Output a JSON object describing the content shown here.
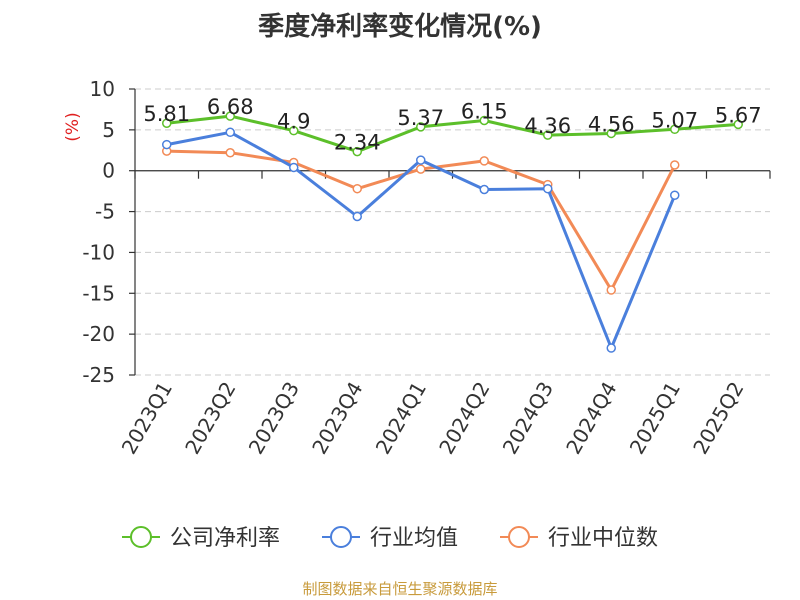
{
  "title": "季度净利率变化情况(%)",
  "source": "制图数据来自恒生聚源数据库",
  "chart_data": {
    "type": "line",
    "title": "季度净利率变化情况(%)",
    "ylabel": "(%)",
    "xlabel": "",
    "ylim": [
      -25,
      10
    ],
    "yticks": [
      10,
      5,
      0,
      -5,
      -10,
      -15,
      -20,
      -25
    ],
    "grid": true,
    "legend_position": "bottom",
    "categories": [
      "2023Q1",
      "2023Q2",
      "2023Q3",
      "2023Q4",
      "2024Q1",
      "2024Q2",
      "2024Q3",
      "2024Q4",
      "2025Q1",
      "2025Q2"
    ],
    "series": [
      {
        "name": "公司净利率",
        "color": "#5cbf2a",
        "values": [
          5.81,
          6.68,
          4.9,
          2.34,
          5.37,
          6.15,
          4.36,
          4.56,
          5.07,
          5.67
        ],
        "labels": [
          "5.81",
          "6.68",
          "4.9",
          "2.34",
          "5.37",
          "6.15",
          "4.36",
          "4.56",
          "5.07",
          "5.67"
        ]
      },
      {
        "name": "行业均值",
        "color": "#4a7fdc",
        "values": [
          3.2,
          4.7,
          0.4,
          -5.6,
          1.3,
          -2.3,
          -2.2,
          -21.7,
          -3.0,
          null
        ]
      },
      {
        "name": "行业中位数",
        "color": "#f28a56",
        "values": [
          2.4,
          2.2,
          1.0,
          -2.2,
          0.2,
          1.2,
          -1.7,
          -14.6,
          0.7,
          null
        ]
      }
    ]
  }
}
